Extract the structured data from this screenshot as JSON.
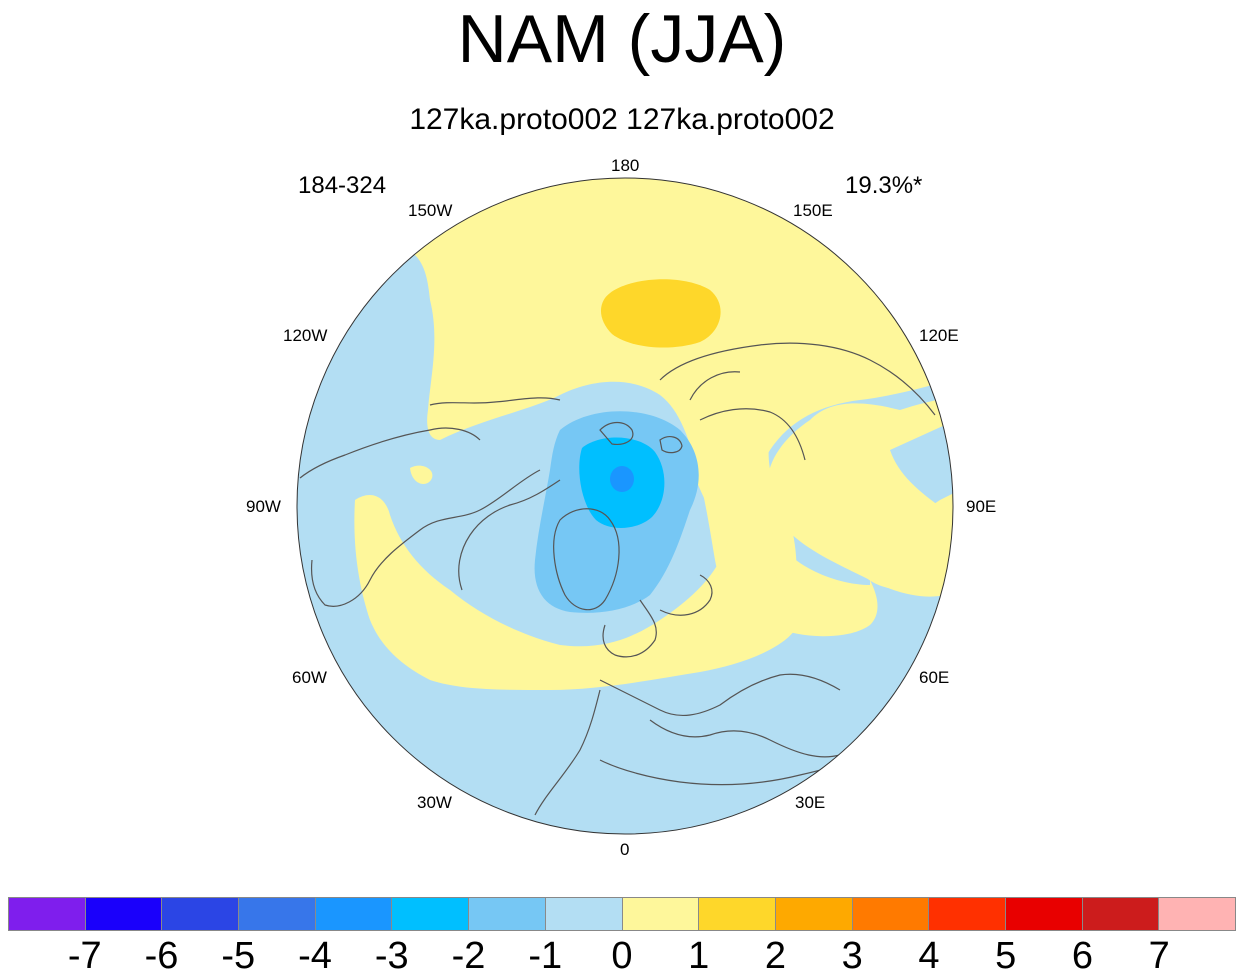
{
  "title": "NAM (JJA)",
  "subtitle": "127ka.proto002  127ka.proto002",
  "corner_left": "184-324",
  "corner_right": "19.3%*",
  "map": {
    "projection": "polar stereographic (north)",
    "longitude_labels": [
      {
        "text": "180",
        "lon": 180
      },
      {
        "text": "150E",
        "lon": 150
      },
      {
        "text": "120E",
        "lon": 120
      },
      {
        "text": "90E",
        "lon": 90
      },
      {
        "text": "60E",
        "lon": 60
      },
      {
        "text": "30E",
        "lon": 30
      },
      {
        "text": "0",
        "lon": 0
      },
      {
        "text": "30W",
        "lon": -30
      },
      {
        "text": "60W",
        "lon": -60
      },
      {
        "text": "90W",
        "lon": -90
      },
      {
        "text": "120W",
        "lon": -120
      },
      {
        "text": "150W",
        "lon": -150
      }
    ],
    "field_colors": {
      "ocean_background": "#b3def3",
      "neg1": "#b3def3",
      "neg2": "#76c7f4",
      "neg3": "#00bfff",
      "neg4": "#1a96ff",
      "pos1": "#fef79b",
      "pos2": "#fed72a",
      "coastline": "#555555"
    }
  },
  "colorbar": {
    "colors": [
      "#7f1eed",
      "#1a00fb",
      "#2b45e5",
      "#3776ea",
      "#1a96ff",
      "#00bfff",
      "#76c7f4",
      "#b3def3",
      "#fef79b",
      "#fed72a",
      "#fea900",
      "#ff7a00",
      "#ff3000",
      "#e80000",
      "#cc1c1c",
      "#ffb3b3"
    ],
    "labels": [
      "-7",
      "-6",
      "-5",
      "-4",
      "-3",
      "-2",
      "-1",
      "0",
      "1",
      "2",
      "3",
      "4",
      "5",
      "6",
      "7"
    ]
  }
}
